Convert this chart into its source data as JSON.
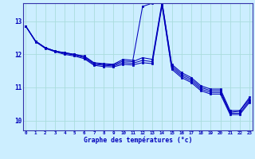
{
  "xlabel": "Graphe des températures (°c)",
  "bg_color": "#cceeff",
  "grid_color": "#aadddd",
  "line_color": "#0000bb",
  "x_ticks": [
    0,
    1,
    2,
    3,
    4,
    5,
    6,
    7,
    8,
    9,
    10,
    11,
    12,
    13,
    14,
    15,
    16,
    17,
    18,
    19,
    20,
    21,
    22,
    23
  ],
  "ylim": [
    9.7,
    13.55
  ],
  "yticks": [
    10,
    11,
    12,
    13
  ],
  "hours": [
    0,
    1,
    2,
    3,
    4,
    5,
    6,
    7,
    8,
    9,
    10,
    11,
    12,
    13,
    14,
    15,
    16,
    17,
    18,
    19,
    20,
    21,
    22,
    23
  ],
  "line1": [
    12.85,
    12.4,
    12.2,
    12.1,
    12.05,
    12.0,
    11.95,
    11.75,
    11.72,
    11.7,
    11.85,
    11.82,
    13.45,
    13.55,
    13.6,
    11.7,
    11.45,
    11.3,
    11.05,
    10.95,
    10.95,
    10.3,
    10.3,
    10.7
  ],
  "line2": [
    12.85,
    12.4,
    12.2,
    12.1,
    12.05,
    12.0,
    11.93,
    11.73,
    11.7,
    11.68,
    11.8,
    11.78,
    11.9,
    11.85,
    13.58,
    11.65,
    11.4,
    11.25,
    11.0,
    10.9,
    10.9,
    10.25,
    10.28,
    10.65
  ],
  "line3": [
    12.85,
    12.4,
    12.2,
    12.1,
    12.03,
    11.98,
    11.9,
    11.7,
    11.67,
    11.65,
    11.75,
    11.73,
    11.82,
    11.78,
    13.52,
    11.6,
    11.35,
    11.2,
    10.95,
    10.85,
    10.85,
    10.22,
    10.22,
    10.6
  ],
  "line4": [
    12.85,
    12.38,
    12.18,
    12.08,
    12.0,
    11.95,
    11.87,
    11.67,
    11.63,
    11.62,
    11.7,
    11.68,
    11.75,
    11.72,
    13.48,
    11.55,
    11.3,
    11.15,
    10.9,
    10.8,
    10.8,
    10.18,
    10.18,
    10.55
  ]
}
